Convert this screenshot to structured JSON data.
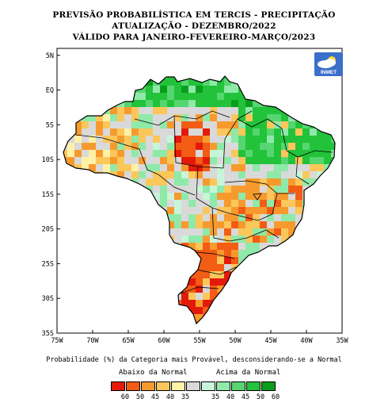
{
  "titles": {
    "line1": "PREVISÃO PROBABILÍSTICA EM TERCIS - PRECIPITAÇÃO",
    "line2": "ATUALIZAÇÃO - DEZEMBRO/2022",
    "line3": "VÁLIDO PARA JANEIRO-FEVEREIRO-MARÇO/2023"
  },
  "logo": {
    "text": "INMET",
    "icon": "cloud-sun-icon"
  },
  "axes": {
    "lat_labels": [
      "5N",
      "EQ",
      "5S",
      "10S",
      "15S",
      "20S",
      "25S",
      "30S",
      "35S"
    ],
    "lat_values": [
      5,
      0,
      -5,
      -10,
      -15,
      -20,
      -25,
      -30,
      -35
    ],
    "lon_labels": [
      "75W",
      "70W",
      "65W",
      "60W",
      "55W",
      "50W",
      "45W",
      "40W",
      "35W"
    ],
    "lon_values": [
      -75,
      -70,
      -65,
      -60,
      -55,
      -50,
      -45,
      -40,
      -35
    ],
    "lon_range": [
      -75,
      -35
    ],
    "lat_range": [
      -35,
      6
    ]
  },
  "caption": "Probabilidade (%) da Categoria mais Provável, desconsiderando-se a Normal",
  "legend": {
    "below_title": "Abaixo da Normal",
    "above_title": "Acima da Normal",
    "below": [
      {
        "value": "60",
        "color": "#e31a0a"
      },
      {
        "value": "50",
        "color": "#f25c14"
      },
      {
        "value": "45",
        "color": "#f79a2e"
      },
      {
        "value": "40",
        "color": "#fbc75a"
      },
      {
        "value": "35",
        "color": "#fff1a8"
      }
    ],
    "neutral": {
      "color": "#d9d9d9"
    },
    "above": [
      {
        "value": "35",
        "color": "#c8f5d8"
      },
      {
        "value": "40",
        "color": "#8fe9a8"
      },
      {
        "value": "45",
        "color": "#55d670"
      },
      {
        "value": "50",
        "color": "#22c23a"
      },
      {
        "value": "60",
        "color": "#0a9e1e"
      }
    ]
  },
  "colors": {
    "neutral": "#d9d9d9",
    "a35": "#c8f5d8",
    "a40": "#8fe9a8",
    "a45": "#55d670",
    "a50": "#22c23a",
    "a60": "#0a9e1e",
    "b35": "#fff1a8",
    "b40": "#fbc75a",
    "b45": "#f79a2e",
    "b50": "#f25c14",
    "b60": "#e31a0a"
  }
}
